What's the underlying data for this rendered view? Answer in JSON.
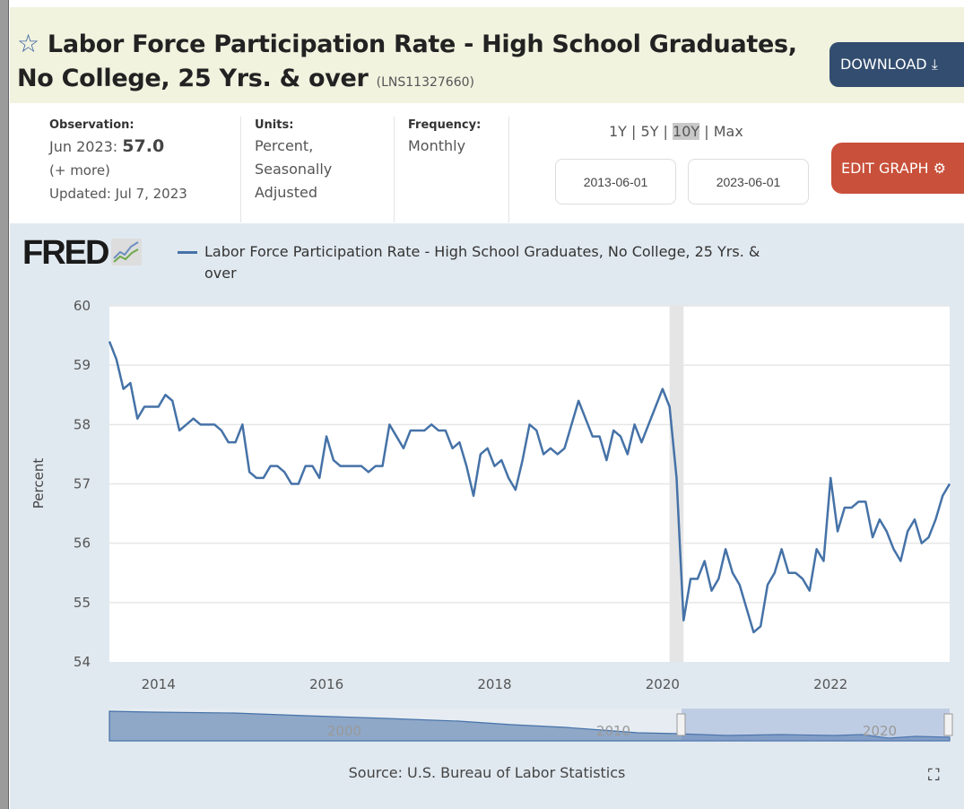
{
  "header": {
    "title": "Labor Force Participation Rate - High School Graduates, No College, 25 Yrs. & over",
    "series_id": "(LNS11327660)",
    "download_label": "DOWNLOAD",
    "star_icon": "star-outline-icon",
    "download_icon": "download-icon"
  },
  "meta": {
    "observation_label": "Observation:",
    "observation_date": "Jun 2023:",
    "observation_value": "57.0",
    "more": "(+ more)",
    "updated": "Updated: Jul 7, 2023",
    "units_label": "Units:",
    "units": [
      "Percent,",
      "Seasonally",
      "Adjusted"
    ],
    "frequency_label": "Frequency:",
    "frequency": "Monthly"
  },
  "ranges": {
    "items": [
      "1Y",
      "5Y",
      "10Y",
      "Max"
    ],
    "selected": "10Y",
    "start_date": "2013-06-01",
    "end_date": "2023-06-01",
    "edit_label": "EDIT GRAPH",
    "edit_icon": "gear-icon"
  },
  "graph": {
    "logo": "FRED",
    "source": "Source: U.S. Bureau of Labor Statistics",
    "navigator_labels": [
      "2000",
      "2010",
      "2020"
    ],
    "fullscreen_icon": "fullscreen-icon"
  },
  "chart_data": {
    "type": "line",
    "title": "",
    "legend": "Labor Force Participation Rate - High School Graduates, No College, 25 Yrs. & over",
    "legend_placement": "top-left",
    "ylabel": "Percent",
    "xlabel": "",
    "ylim": [
      54,
      60
    ],
    "yticks": [
      "54",
      "55",
      "56",
      "57",
      "58",
      "59",
      "60"
    ],
    "xticks": [
      "2014",
      "2016",
      "2018",
      "2020",
      "2022"
    ],
    "x_start": "2013-06",
    "x_end": "2023-06",
    "frequency": "monthly",
    "recession": [
      "2020-02",
      "2020-04"
    ],
    "color": "#4572a7",
    "values": [
      59.4,
      59.1,
      58.6,
      58.7,
      58.1,
      58.3,
      58.3,
      58.3,
      58.5,
      58.4,
      57.9,
      58.0,
      58.1,
      58.0,
      58.0,
      58.0,
      57.9,
      57.7,
      57.7,
      58.0,
      57.2,
      57.1,
      57.1,
      57.3,
      57.3,
      57.2,
      57.0,
      57.0,
      57.3,
      57.3,
      57.1,
      57.8,
      57.4,
      57.3,
      57.3,
      57.3,
      57.3,
      57.2,
      57.3,
      57.3,
      58.0,
      57.8,
      57.6,
      57.9,
      57.9,
      57.9,
      58.0,
      57.9,
      57.9,
      57.6,
      57.7,
      57.3,
      56.8,
      57.5,
      57.6,
      57.3,
      57.4,
      57.1,
      56.9,
      57.4,
      58.0,
      57.9,
      57.5,
      57.6,
      57.5,
      57.6,
      58.0,
      58.4,
      58.1,
      57.8,
      57.8,
      57.4,
      57.9,
      57.8,
      57.5,
      58.0,
      57.7,
      58.0,
      58.3,
      58.6,
      58.3,
      57.1,
      54.7,
      55.4,
      55.4,
      55.7,
      55.2,
      55.4,
      55.9,
      55.5,
      55.3,
      54.9,
      54.5,
      54.6,
      55.3,
      55.5,
      55.9,
      55.5,
      55.5,
      55.4,
      55.2,
      55.9,
      55.7,
      57.1,
      56.2,
      56.6,
      56.6,
      56.7,
      56.7,
      56.1,
      56.4,
      56.2,
      55.9,
      55.7,
      56.2,
      56.4,
      56.0,
      56.1,
      56.4,
      56.8,
      57.0
    ]
  }
}
